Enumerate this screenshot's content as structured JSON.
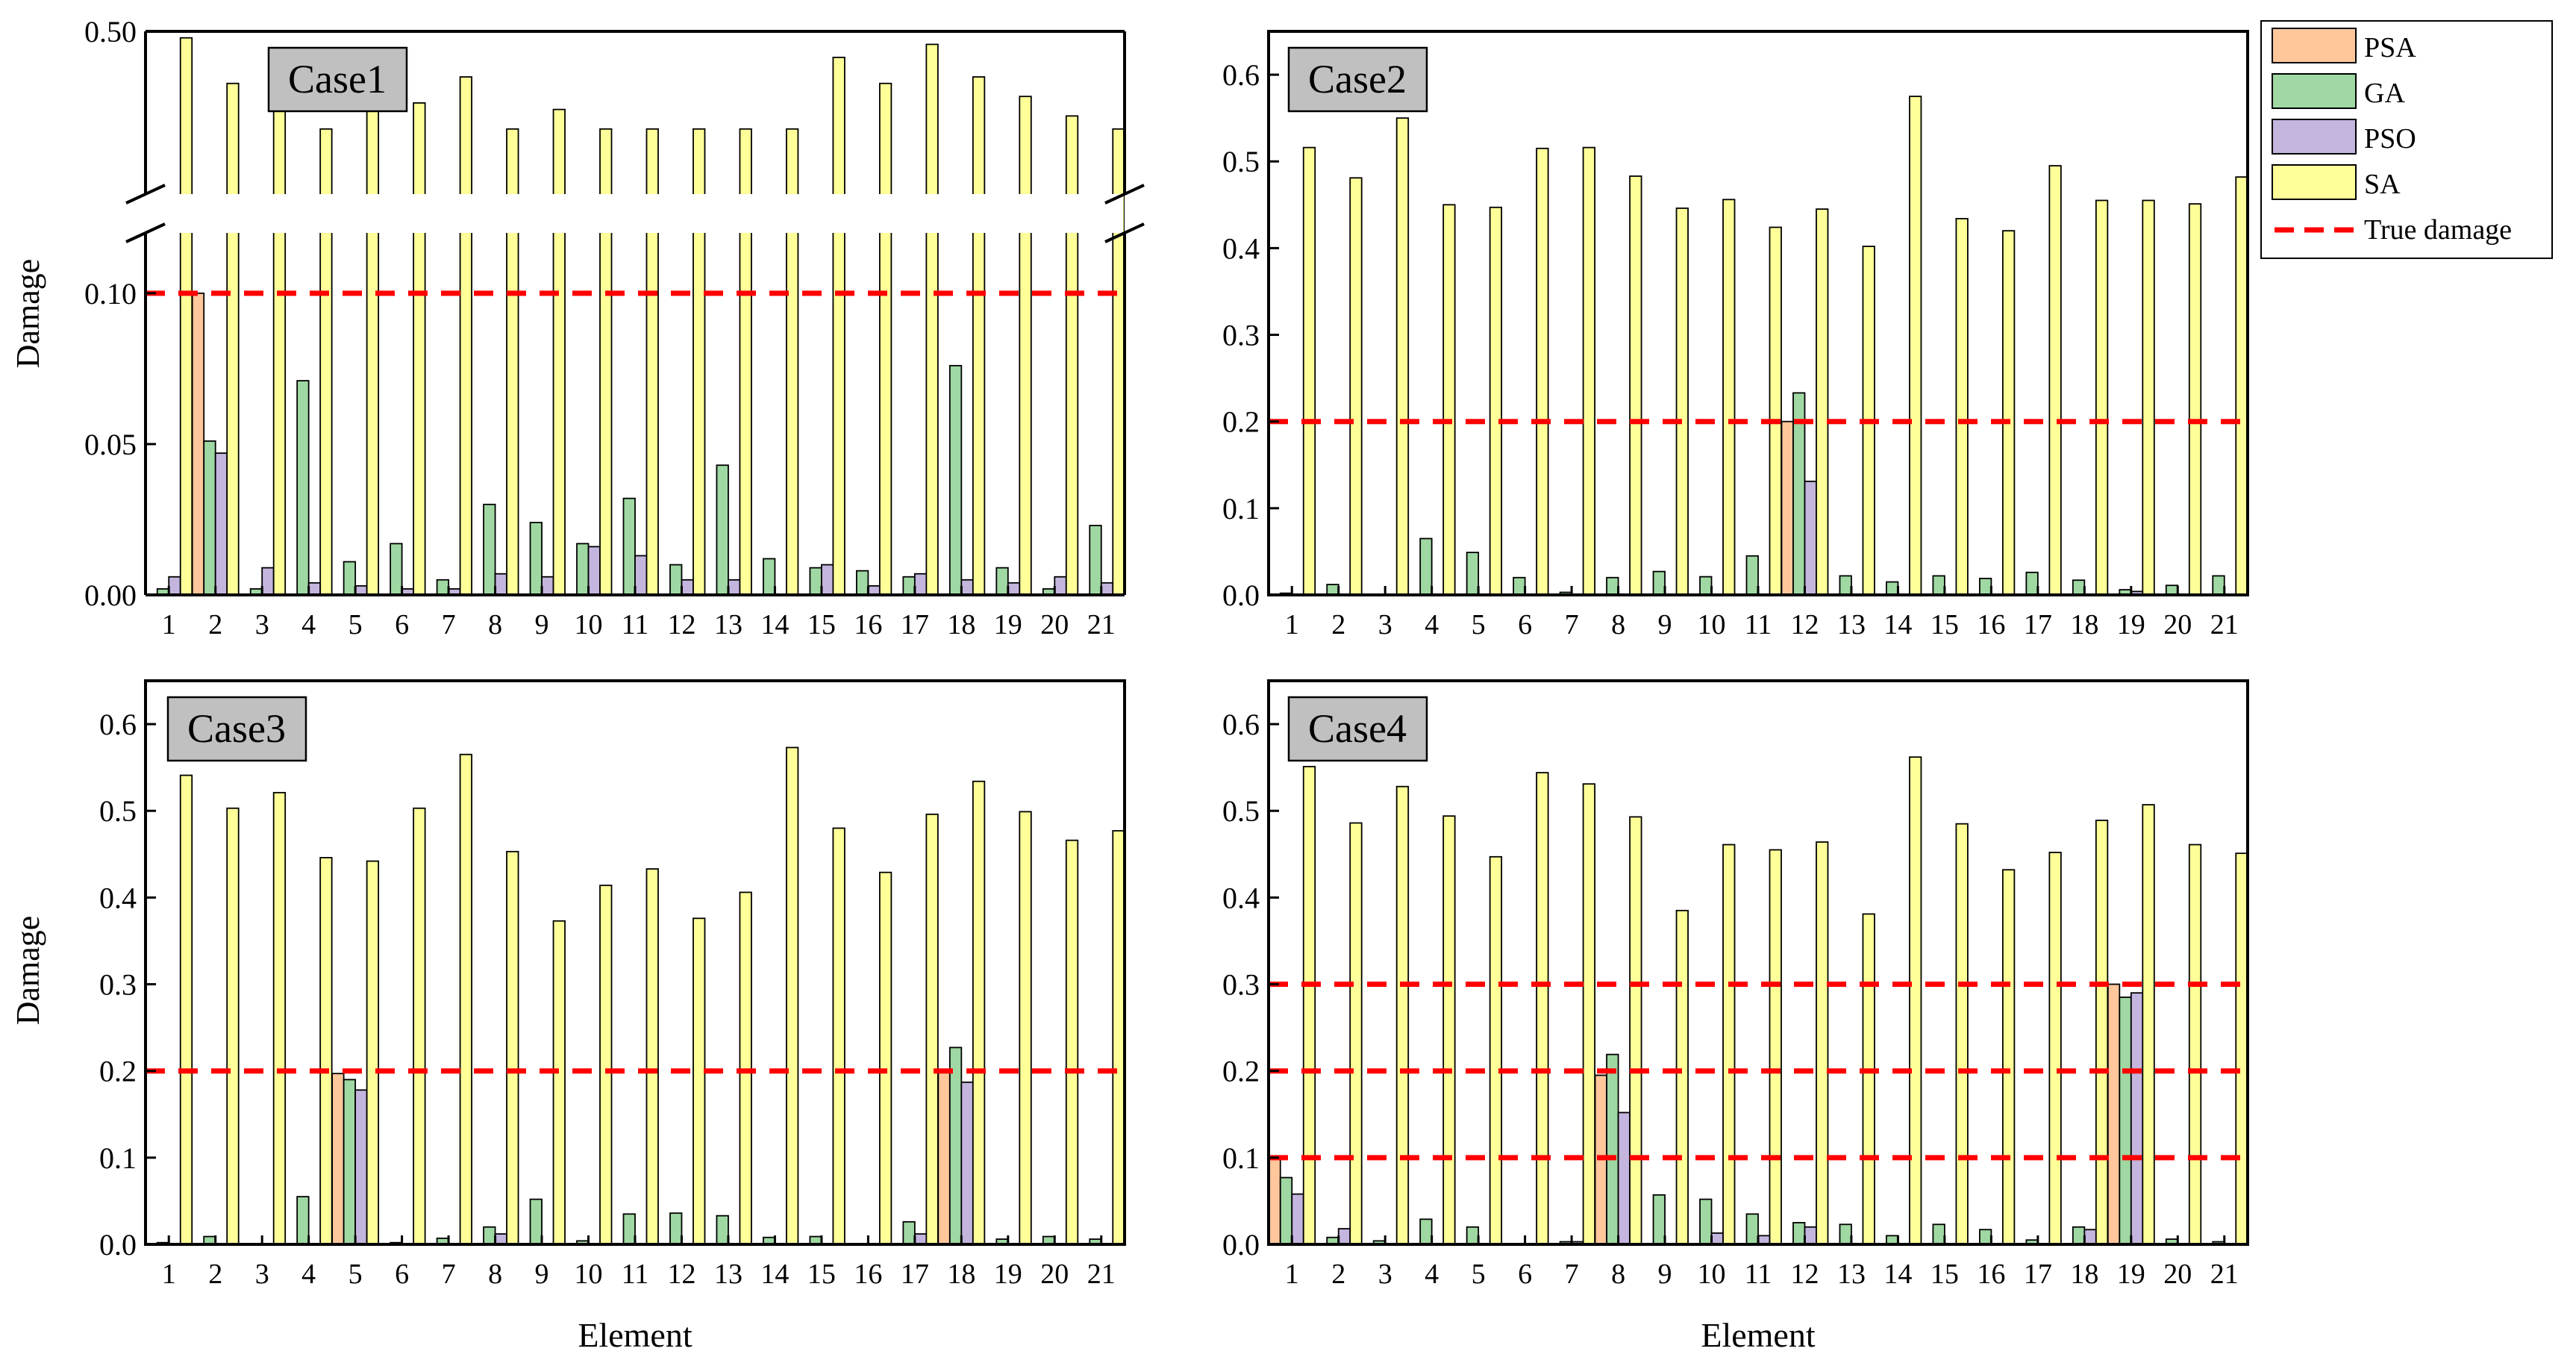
{
  "colors": {
    "PSA": "#ffc79b",
    "GA": "#9fd8a2",
    "PSO": "#c3b5dd",
    "SA": "#ffff99",
    "true_damage": "#ff0000",
    "case_box": "#c0c0c0"
  },
  "legend": {
    "entries": [
      {
        "key": "PSA",
        "label": "PSA"
      },
      {
        "key": "GA",
        "label": "GA"
      },
      {
        "key": "PSO",
        "label": "PSO"
      },
      {
        "key": "SA",
        "label": "SA"
      },
      {
        "key": "true_damage",
        "label": "True damage"
      }
    ],
    "placement": "top-right"
  },
  "chart_data": [
    {
      "type": "bar",
      "title": "Case1",
      "xlabel": "",
      "ylabel": "Damage",
      "categories": [
        "1",
        "2",
        "3",
        "4",
        "5",
        "6",
        "7",
        "8",
        "9",
        "10",
        "11",
        "12",
        "13",
        "14",
        "15",
        "16",
        "17",
        "18",
        "19",
        "20",
        "21"
      ],
      "axis_break": {
        "lower": [
          0,
          0.12
        ],
        "upper": [
          0.25,
          0.5
        ]
      },
      "ticks": [
        {
          "value": 0,
          "label": "0.00"
        },
        {
          "value": 0.05,
          "label": "0.05"
        },
        {
          "value": 0.1,
          "label": "0.10"
        },
        {
          "value": 0.5,
          "label": "0.50"
        }
      ],
      "true_damage": [
        0.1
      ],
      "series": [
        {
          "name": "PSA",
          "values": [
            0,
            0.1,
            0,
            0,
            0,
            0,
            0,
            0,
            0,
            0,
            0,
            0,
            0,
            0,
            0,
            0,
            0,
            0,
            0,
            0,
            0
          ]
        },
        {
          "name": "GA",
          "values": [
            0.002,
            0.051,
            0.002,
            0.071,
            0.011,
            0.017,
            0.005,
            0.03,
            0.024,
            0.017,
            0.032,
            0.01,
            0.043,
            0.012,
            0.009,
            0.008,
            0.006,
            0.076,
            0.009,
            0.002,
            0.023
          ]
        },
        {
          "name": "PSO",
          "values": [
            0.006,
            0.047,
            0.009,
            0.004,
            0.003,
            0.002,
            0.002,
            0.007,
            0.006,
            0.016,
            0.013,
            0.005,
            0.005,
            0,
            0.01,
            0.003,
            0.007,
            0.005,
            0.004,
            0.006,
            0.004
          ]
        },
        {
          "name": "SA",
          "values": [
            0.49,
            0.42,
            0.41,
            0.35,
            0.4,
            0.39,
            0.43,
            0.35,
            0.38,
            0.35,
            0.35,
            0.35,
            0.35,
            0.35,
            0.46,
            0.42,
            0.48,
            0.43,
            0.4,
            0.37,
            0.35
          ]
        }
      ]
    },
    {
      "type": "bar",
      "title": "Case2",
      "xlabel": "",
      "ylabel": "",
      "categories": [
        "1",
        "2",
        "3",
        "4",
        "5",
        "6",
        "7",
        "8",
        "9",
        "10",
        "11",
        "12",
        "13",
        "14",
        "15",
        "16",
        "17",
        "18",
        "19",
        "20",
        "21"
      ],
      "ylim": [
        0,
        0.65
      ],
      "ticks": [
        {
          "value": 0,
          "label": "0.0"
        },
        {
          "value": 0.1,
          "label": "0.1"
        },
        {
          "value": 0.2,
          "label": "0.2"
        },
        {
          "value": 0.3,
          "label": "0.3"
        },
        {
          "value": 0.4,
          "label": "0.4"
        },
        {
          "value": 0.5,
          "label": "0.5"
        },
        {
          "value": 0.6,
          "label": "0.6"
        }
      ],
      "true_damage": [
        0.2
      ],
      "series": [
        {
          "name": "PSA",
          "values": [
            0,
            0,
            0,
            0,
            0,
            0,
            0,
            0,
            0,
            0,
            0,
            0.2,
            0,
            0,
            0,
            0,
            0,
            0,
            0,
            0,
            0
          ]
        },
        {
          "name": "GA",
          "values": [
            0.002,
            0.012,
            0,
            0.065,
            0.049,
            0.02,
            0.003,
            0.02,
            0.027,
            0.021,
            0.045,
            0.233,
            0.022,
            0.015,
            0.022,
            0.019,
            0.026,
            0.017,
            0.006,
            0.011,
            0.022
          ]
        },
        {
          "name": "PSO",
          "values": [
            0,
            0,
            0,
            0,
            0,
            0,
            0,
            0,
            0,
            0,
            0,
            0.131,
            0,
            0,
            0,
            0,
            0,
            0,
            0.004,
            0,
            0
          ]
        },
        {
          "name": "SA",
          "values": [
            0.516,
            0.481,
            0.55,
            0.45,
            0.447,
            0.515,
            0.516,
            0.483,
            0.446,
            0.456,
            0.424,
            0.445,
            0.402,
            0.575,
            0.434,
            0.42,
            0.495,
            0.455,
            0.455,
            0.451,
            0.482
          ]
        }
      ]
    },
    {
      "type": "bar",
      "title": "Case3",
      "xlabel": "Element",
      "ylabel": "Damage",
      "categories": [
        "1",
        "2",
        "3",
        "4",
        "5",
        "6",
        "7",
        "8",
        "9",
        "10",
        "11",
        "12",
        "13",
        "14",
        "15",
        "16",
        "17",
        "18",
        "19",
        "20",
        "21"
      ],
      "ylim": [
        0,
        0.65
      ],
      "ticks": [
        {
          "value": 0,
          "label": "0.0"
        },
        {
          "value": 0.1,
          "label": "0.1"
        },
        {
          "value": 0.2,
          "label": "0.2"
        },
        {
          "value": 0.3,
          "label": "0.3"
        },
        {
          "value": 0.4,
          "label": "0.4"
        },
        {
          "value": 0.5,
          "label": "0.5"
        },
        {
          "value": 0.6,
          "label": "0.6"
        }
      ],
      "true_damage": [
        0.2
      ],
      "series": [
        {
          "name": "PSA",
          "values": [
            0,
            0,
            0,
            0,
            0.197,
            0,
            0,
            0,
            0,
            0,
            0,
            0,
            0,
            0,
            0,
            0,
            0,
            0.2,
            0,
            0,
            0
          ]
        },
        {
          "name": "GA",
          "values": [
            0.002,
            0.009,
            0,
            0.055,
            0.19,
            0.002,
            0.007,
            0.02,
            0.052,
            0.004,
            0.035,
            0.036,
            0.033,
            0.008,
            0.009,
            0,
            0.026,
            0.227,
            0.006,
            0.009,
            0.006
          ]
        },
        {
          "name": "PSO",
          "values": [
            0,
            0,
            0,
            0,
            0.178,
            0,
            0,
            0.012,
            0,
            0,
            0,
            0,
            0,
            0,
            0,
            0,
            0.012,
            0.187,
            0,
            0,
            0
          ]
        },
        {
          "name": "SA",
          "values": [
            0.541,
            0.503,
            0.521,
            0.446,
            0.442,
            0.503,
            0.565,
            0.453,
            0.373,
            0.414,
            0.433,
            0.376,
            0.406,
            0.573,
            0.48,
            0.429,
            0.496,
            0.534,
            0.499,
            0.466,
            0.477
          ]
        }
      ]
    },
    {
      "type": "bar",
      "title": "Case4",
      "xlabel": "Element",
      "ylabel": "",
      "categories": [
        "1",
        "2",
        "3",
        "4",
        "5",
        "6",
        "7",
        "8",
        "9",
        "10",
        "11",
        "12",
        "13",
        "14",
        "15",
        "16",
        "17",
        "18",
        "19",
        "20",
        "21"
      ],
      "ylim": [
        0,
        0.65
      ],
      "ticks": [
        {
          "value": 0,
          "label": "0.0"
        },
        {
          "value": 0.1,
          "label": "0.1"
        },
        {
          "value": 0.2,
          "label": "0.2"
        },
        {
          "value": 0.3,
          "label": "0.3"
        },
        {
          "value": 0.4,
          "label": "0.4"
        },
        {
          "value": 0.5,
          "label": "0.5"
        },
        {
          "value": 0.6,
          "label": "0.6"
        }
      ],
      "true_damage": [
        0.1,
        0.2,
        0.3
      ],
      "series": [
        {
          "name": "PSA",
          "values": [
            0.1,
            0,
            0,
            0,
            0,
            0,
            0,
            0.195,
            0,
            0,
            0,
            0,
            0,
            0,
            0,
            0,
            0,
            0,
            0.3,
            0,
            0
          ]
        },
        {
          "name": "GA",
          "values": [
            0.077,
            0.008,
            0.004,
            0.029,
            0.02,
            0,
            0.003,
            0.219,
            0.057,
            0.052,
            0.035,
            0.025,
            0.023,
            0.01,
            0.023,
            0.017,
            0.005,
            0.02,
            0.285,
            0.006,
            0.003
          ]
        },
        {
          "name": "PSO",
          "values": [
            0.058,
            0.018,
            0,
            0,
            0,
            0,
            0.003,
            0.152,
            0,
            0.013,
            0.01,
            0.02,
            0,
            0,
            0,
            0,
            0,
            0.017,
            0.29,
            0,
            0
          ]
        },
        {
          "name": "SA",
          "values": [
            0.551,
            0.486,
            0.528,
            0.494,
            0.447,
            0.544,
            0.531,
            0.493,
            0.385,
            0.461,
            0.455,
            0.464,
            0.381,
            0.562,
            0.485,
            0.432,
            0.452,
            0.489,
            0.507,
            0.461,
            0.451
          ]
        }
      ]
    }
  ]
}
